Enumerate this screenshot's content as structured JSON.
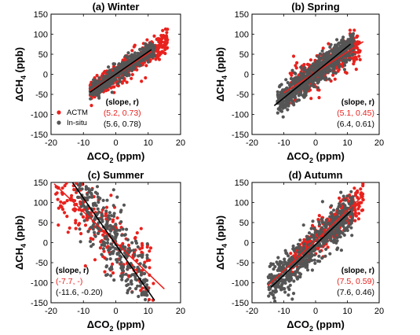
{
  "chart_data": [
    {
      "type": "scatter",
      "title": "(a) Winter",
      "xlabel": "ΔCO",
      "xlabel_sub": "2",
      "xlabel_unit": " (ppm)",
      "ylabel": "ΔCH",
      "ylabel_sub": "4",
      "ylabel_unit": " (ppb)",
      "xlim": [
        -20,
        20
      ],
      "ylim": [
        -150,
        150
      ],
      "xticks": [
        -20,
        -10,
        0,
        10,
        20
      ],
      "yticks": [
        -150,
        -100,
        -50,
        0,
        50,
        100,
        150
      ],
      "legend": {
        "placement": "bottom-left",
        "entries": [
          {
            "name": "ACTM",
            "color": "#e8221e"
          },
          {
            "name": "In-situ",
            "color": "#555555"
          }
        ]
      },
      "annotation": {
        "header": "(slope, r)",
        "red": "(5.2, 0.73)",
        "black": "(5.6, 0.78)",
        "placement": "bottom-center"
      },
      "series": [
        {
          "name": "ACTM",
          "color": "#e8221e",
          "slope": 5.2,
          "intercept": 0,
          "x_range": [
            -8,
            16
          ],
          "spread": 14,
          "n": 520
        },
        {
          "name": "In-situ",
          "color": "#555555",
          "slope": 5.6,
          "intercept": 0,
          "x_range": [
            -8,
            12
          ],
          "spread": 10,
          "n": 520
        }
      ],
      "fit_lines": [
        {
          "color": "#e8221e",
          "slope": 5.2,
          "intercept": 0,
          "x": [
            -8,
            11
          ]
        },
        {
          "color": "#000000",
          "slope": 5.6,
          "intercept": 0,
          "x": [
            -8,
            11
          ]
        }
      ]
    },
    {
      "type": "scatter",
      "title": "(b) Spring",
      "xlabel": "ΔCO",
      "xlabel_sub": "2",
      "xlabel_unit": " (ppm)",
      "ylabel": "ΔCH",
      "ylabel_sub": "4",
      "ylabel_unit": " (ppb)",
      "xlim": [
        -20,
        20
      ],
      "ylim": [
        -150,
        150
      ],
      "xticks": [
        -20,
        -10,
        0,
        10,
        20
      ],
      "yticks": [
        -150,
        -100,
        -50,
        0,
        50,
        100,
        150
      ],
      "annotation": {
        "header": "(slope, r)",
        "red": "(5.1, 0.45)",
        "black": "(6.4, 0.61)",
        "placement": "bottom-right"
      },
      "series": [
        {
          "name": "ACTM",
          "color": "#e8221e",
          "slope": 5.1,
          "intercept": 5,
          "x_range": [
            -8,
            14
          ],
          "spread": 22,
          "n": 380
        },
        {
          "name": "In-situ",
          "color": "#555555",
          "slope": 6.4,
          "intercept": 5,
          "x_range": [
            -12,
            12
          ],
          "spread": 16,
          "n": 700
        }
      ],
      "fit_lines": [
        {
          "color": "#e8221e",
          "slope": 5.1,
          "intercept": 5,
          "x": [
            -10,
            15
          ]
        },
        {
          "color": "#000000",
          "slope": 6.4,
          "intercept": 5,
          "x": [
            -13,
            11
          ]
        }
      ]
    },
    {
      "type": "scatter",
      "title": "(c) Summer",
      "xlabel": "ΔCO",
      "xlabel_sub": "2",
      "xlabel_unit": " (ppm)",
      "ylabel": "ΔCH",
      "ylabel_sub": "4",
      "ylabel_unit": " (ppb)",
      "xlim": [
        -20,
        20
      ],
      "ylim": [
        -150,
        150
      ],
      "xticks": [
        -20,
        -10,
        0,
        10,
        20
      ],
      "yticks": [
        -150,
        -100,
        -50,
        0,
        50,
        100,
        150
      ],
      "annotation": {
        "header": "(slope, r)",
        "red": "(-7.7, -)",
        "black": "(-11.6, -0.20)",
        "placement": "bottom-left"
      },
      "series": [
        {
          "name": "ACTM",
          "color": "#e8221e",
          "slope": -7.7,
          "intercept": 0,
          "x_range": [
            -19,
            12
          ],
          "spread": 45,
          "n": 230
        },
        {
          "name": "In-situ",
          "color": "#555555",
          "slope": -11.6,
          "intercept": -5,
          "x_range": [
            -12,
            10
          ],
          "spread": 45,
          "n": 330
        }
      ],
      "fit_lines": [
        {
          "color": "#e8221e",
          "slope": -7.7,
          "intercept": 0,
          "x": [
            -19,
            15
          ]
        },
        {
          "color": "#000000",
          "slope": -11.6,
          "intercept": -5,
          "x": [
            -14,
            12
          ]
        }
      ]
    },
    {
      "type": "scatter",
      "title": "(d) Autumn",
      "xlabel": "ΔCO",
      "xlabel_sub": "2",
      "xlabel_unit": " (ppm)",
      "ylabel": "ΔCH",
      "ylabel_sub": "4",
      "ylabel_unit": " (ppb)",
      "xlim": [
        -20,
        20
      ],
      "ylim": [
        -150,
        150
      ],
      "xticks": [
        -20,
        -10,
        0,
        10,
        20
      ],
      "yticks": [
        -150,
        -100,
        -50,
        0,
        50,
        100,
        150
      ],
      "annotation": {
        "header": "(slope, r)",
        "red": "(7.5, 0.59)",
        "black": "(7.6, 0.46)",
        "placement": "bottom-right"
      },
      "series": [
        {
          "name": "ACTM",
          "color": "#e8221e",
          "slope": 7.5,
          "intercept": 5,
          "x_range": [
            -8,
            15
          ],
          "spread": 22,
          "n": 330
        },
        {
          "name": "In-situ",
          "color": "#555555",
          "slope": 7.6,
          "intercept": -5,
          "x_range": [
            -15,
            12
          ],
          "spread": 25,
          "n": 560
        }
      ],
      "fit_lines": [
        {
          "color": "#e8221e",
          "slope": 7.5,
          "intercept": 5,
          "x": [
            -15,
            15
          ]
        },
        {
          "color": "#000000",
          "slope": 7.6,
          "intercept": -5,
          "x": [
            -14,
            11
          ]
        }
      ]
    }
  ]
}
